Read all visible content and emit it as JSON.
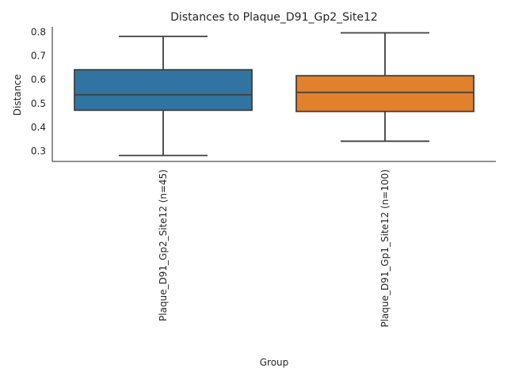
{
  "chart_data": {
    "type": "box",
    "title": "Distances to Plaque_D91_Gp2_Site12",
    "xlabel": "Group",
    "ylabel": "Distance",
    "ylim": [
      0.255,
      0.82
    ],
    "yticks": [
      0.3,
      0.4,
      0.5,
      0.6,
      0.7,
      0.8
    ],
    "ytick_labels": [
      "0.3",
      "0.4",
      "0.5",
      "0.6",
      "0.7",
      "0.8"
    ],
    "grid": false,
    "categories": [
      "Plaque_D91_Gp2_Site12 (n=45)",
      "Plaque_D91_Gp1_Site12 (n=100)"
    ],
    "boxes": [
      {
        "category": "Plaque_D91_Gp2_Site12 (n=45)",
        "whisker_low": 0.28,
        "q1": 0.47,
        "median": 0.535,
        "q3": 0.64,
        "whisker_high": 0.78,
        "color": "#3274a1"
      },
      {
        "category": "Plaque_D91_Gp1_Site12 (n=100)",
        "whisker_low": 0.34,
        "q1": 0.465,
        "median": 0.545,
        "q3": 0.615,
        "whisker_high": 0.795,
        "color": "#e1812c"
      }
    ]
  }
}
